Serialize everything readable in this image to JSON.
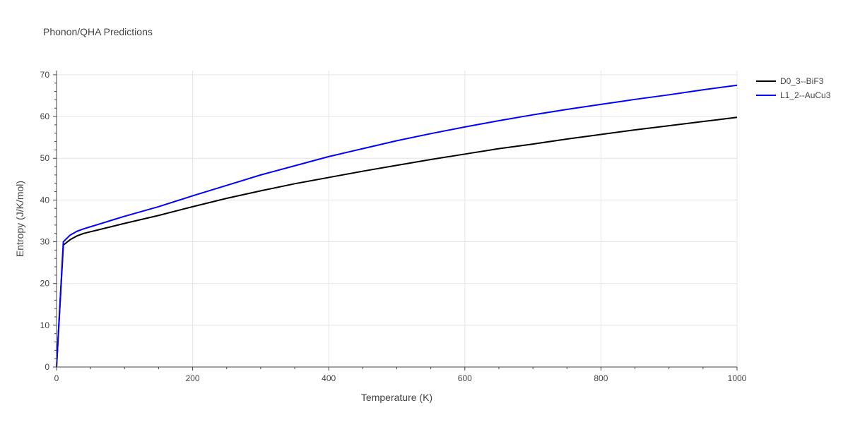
{
  "chart_data": {
    "type": "line",
    "title": "Phonon/QHA Predictions",
    "xlabel": "Temperature (K)",
    "ylabel": "Entropy (J/K/mol)",
    "xlim": [
      0,
      1000
    ],
    "ylim": [
      0,
      71
    ],
    "x_ticks": [
      0,
      200,
      400,
      600,
      800,
      1000
    ],
    "y_ticks": [
      0,
      10,
      20,
      30,
      40,
      50,
      60,
      70
    ],
    "grid": true,
    "legend_position": "top-right",
    "series": [
      {
        "name": "D0_3--BiF3",
        "color": "#000000",
        "x": [
          0,
          10,
          20,
          30,
          40,
          50,
          60,
          80,
          100,
          150,
          200,
          250,
          300,
          350,
          400,
          450,
          500,
          550,
          600,
          650,
          700,
          750,
          800,
          850,
          900,
          950,
          1000
        ],
        "y": [
          0,
          29.2,
          30.5,
          31.4,
          32.0,
          32.4,
          32.8,
          33.6,
          34.4,
          36.3,
          38.4,
          40.4,
          42.2,
          43.9,
          45.4,
          46.9,
          48.3,
          49.7,
          51.0,
          52.3,
          53.4,
          54.6,
          55.7,
          56.8,
          57.8,
          58.8,
          59.8
        ]
      },
      {
        "name": "L1_2--AuCu3",
        "color": "#0000ff",
        "x": [
          0,
          10,
          20,
          30,
          40,
          50,
          60,
          80,
          100,
          150,
          200,
          250,
          300,
          350,
          400,
          450,
          500,
          550,
          600,
          650,
          700,
          750,
          800,
          850,
          900,
          950,
          1000
        ],
        "y": [
          0,
          30.0,
          31.6,
          32.5,
          33.1,
          33.6,
          34.1,
          35.1,
          36.1,
          38.4,
          41.0,
          43.5,
          46.0,
          48.2,
          50.4,
          52.3,
          54.2,
          55.9,
          57.5,
          59.0,
          60.4,
          61.7,
          62.9,
          64.1,
          65.2,
          66.4,
          67.5
        ]
      }
    ]
  }
}
